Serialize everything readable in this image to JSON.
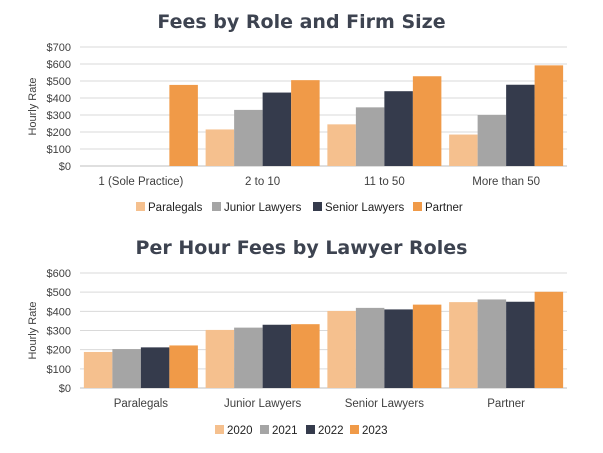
{
  "chart_data": [
    {
      "type": "bar",
      "title": "Fees by Role and Firm Size",
      "ylabel": "Hourly Rate",
      "xlabel": "",
      "ylim": [
        0,
        700
      ],
      "yticks": [
        "$0",
        "$100",
        "$200",
        "$300",
        "$400",
        "$500",
        "$600",
        "$700"
      ],
      "ytick_values": [
        0,
        100,
        200,
        300,
        400,
        500,
        600,
        700
      ],
      "grid": true,
      "legend_position": "bottom",
      "categories": [
        "1 (Sole Practice)",
        "2 to 10",
        "11 to 50",
        "More than 50"
      ],
      "series": [
        {
          "name": "Paralegals",
          "color": "#f5c08e",
          "values": [
            0,
            215,
            245,
            185
          ]
        },
        {
          "name": "Junior Lawyers",
          "color": "#a5a5a5",
          "values": [
            0,
            330,
            345,
            300
          ]
        },
        {
          "name": "Senior Lawyers",
          "color": "#353b4c",
          "values": [
            0,
            432,
            440,
            478
          ]
        },
        {
          "name": "Partner",
          "color": "#f09a48",
          "values": [
            477,
            505,
            528,
            592
          ]
        }
      ]
    },
    {
      "type": "bar",
      "title": "Per Hour Fees by Lawyer Roles",
      "ylabel": "Hourly Rate",
      "xlabel": "",
      "ylim": [
        0,
        600
      ],
      "yticks": [
        "$0",
        "$100",
        "$200",
        "$300",
        "$400",
        "$500",
        "$600"
      ],
      "ytick_values": [
        0,
        100,
        200,
        300,
        400,
        500,
        600
      ],
      "grid": true,
      "legend_position": "bottom",
      "categories": [
        "Paralegals",
        "Junior Lawyers",
        "Senior Lawyers",
        "Partner"
      ],
      "series": [
        {
          "name": "2020",
          "color": "#f5c08e",
          "values": [
            188,
            303,
            402,
            448
          ]
        },
        {
          "name": "2021",
          "color": "#a5a5a5",
          "values": [
            203,
            315,
            418,
            462
          ]
        },
        {
          "name": "2022",
          "color": "#353b4c",
          "values": [
            212,
            330,
            410,
            450
          ]
        },
        {
          "name": "2023",
          "color": "#f09a48",
          "values": [
            222,
            333,
            435,
            502
          ]
        }
      ]
    }
  ]
}
